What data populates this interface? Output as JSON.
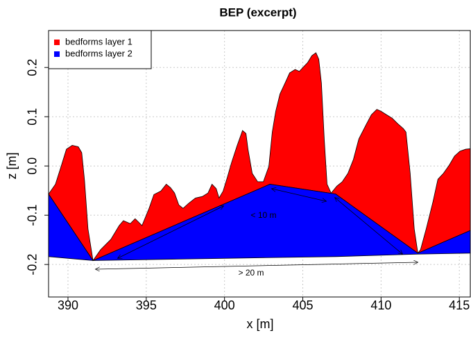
{
  "chart_data": {
    "type": "area",
    "title": "BEP (excerpt)",
    "x_label": "x [m]",
    "y_label": "z [m]",
    "xlim": [
      388.76,
      415.7
    ],
    "ylim": [
      -0.266,
      0.275
    ],
    "xticks": [
      390,
      395,
      400,
      405,
      410,
      415
    ],
    "yticks": [
      -0.2,
      -0.1,
      {
        "value": 0,
        "label": "0.0"
      },
      0.1,
      0.2
    ],
    "grid": true,
    "legend": "topleft",
    "annotations": [
      "< 10 m",
      "> 20 m"
    ],
    "series": [
      {
        "name": "bedforms layer 1",
        "color": "#ff0000",
        "x": [
          388.76,
          389.2,
          389.56,
          389.9,
          390.27,
          390.66,
          390.88,
          391.06,
          391.28,
          391.6,
          392.08,
          392.74,
          393.27,
          393.54,
          393.98,
          394.29,
          394.73,
          395.18,
          395.49,
          395.93,
          396.28,
          396.55,
          396.81,
          397.08,
          397.35,
          397.7,
          398.14,
          398.58,
          398.94,
          399.2,
          399.47,
          399.65,
          399.91,
          400.18,
          400.44,
          400.8,
          401.15,
          401.37,
          401.5,
          401.77,
          402.12,
          402.48,
          402.83,
          403.05,
          403.27,
          403.54,
          403.89,
          404.16,
          404.51,
          404.78,
          405.04,
          405.31,
          405.58,
          405.84,
          406.02,
          406.19,
          406.37,
          406.55,
          406.81,
          407.17,
          407.52,
          407.88,
          408.23,
          408.58,
          409.03,
          409.38,
          409.73,
          410.0,
          410.35,
          410.71,
          411.06,
          411.42,
          411.59,
          411.86,
          412.12,
          412.35,
          412.52,
          412.88,
          413.32,
          413.63,
          413.98,
          414.34,
          414.69,
          415.04,
          415.4,
          415.7
        ],
        "values": [
          -0.057,
          -0.037,
          -0.001,
          0.034,
          0.042,
          0.039,
          0.027,
          -0.03,
          -0.128,
          -0.192,
          -0.17,
          -0.149,
          -0.121,
          -0.111,
          -0.117,
          -0.107,
          -0.121,
          -0.086,
          -0.058,
          -0.051,
          -0.037,
          -0.044,
          -0.055,
          -0.079,
          -0.086,
          -0.076,
          -0.065,
          -0.062,
          -0.055,
          -0.037,
          -0.046,
          -0.065,
          -0.051,
          -0.023,
          0.006,
          0.041,
          0.072,
          0.066,
          0.034,
          -0.015,
          -0.032,
          -0.032,
          -0.001,
          0.069,
          0.111,
          0.146,
          0.17,
          0.189,
          0.196,
          0.192,
          0.201,
          0.21,
          0.224,
          0.23,
          0.217,
          0.168,
          0.055,
          -0.037,
          -0.055,
          -0.041,
          -0.032,
          -0.015,
          0.013,
          0.055,
          0.083,
          0.104,
          0.115,
          0.111,
          0.104,
          0.097,
          0.086,
          0.076,
          0.069,
          -0.015,
          -0.128,
          -0.177,
          -0.17,
          -0.128,
          -0.072,
          -0.027,
          -0.015,
          0.001,
          0.02,
          0.03,
          0.034,
          0.035
        ]
      },
      {
        "name": "bedforms layer 2",
        "color": "#0000ff",
        "x": [
          388.76,
          391.6,
          402.9,
          407.1,
          412.35,
          415.7
        ],
        "values": [
          -0.057,
          -0.192,
          -0.037,
          -0.057,
          -0.177,
          -0.131
        ],
        "lower": [
          -0.184,
          -0.192,
          -0.186,
          -0.184,
          -0.179,
          -0.177
        ]
      }
    ]
  }
}
